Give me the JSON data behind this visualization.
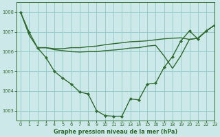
{
  "title": "Graphe pression niveau de la mer (hPa)",
  "background_color": "#cce8e8",
  "grid_color": "#99cccc",
  "line_color": "#2d6a2d",
  "xlim": [
    -0.5,
    23
  ],
  "ylim": [
    1002.5,
    1008.5
  ],
  "yticks": [
    1003,
    1004,
    1005,
    1006,
    1007,
    1008
  ],
  "xticks": [
    0,
    1,
    2,
    3,
    4,
    5,
    6,
    7,
    8,
    9,
    10,
    11,
    12,
    13,
    14,
    15,
    16,
    17,
    18,
    19,
    20,
    21,
    22,
    23
  ],
  "s1_x": [
    0,
    1,
    2,
    3,
    4,
    5,
    6,
    7,
    8,
    9,
    10,
    11,
    12,
    13,
    14,
    15,
    16,
    17,
    18,
    19,
    20,
    21,
    22,
    23
  ],
  "s1_y": [
    1008.0,
    1007.0,
    1006.2,
    1005.7,
    1005.0,
    1004.65,
    1004.35,
    1003.95,
    1003.85,
    1003.0,
    1002.75,
    1002.72,
    1002.72,
    1003.6,
    1003.55,
    1004.35,
    1004.4,
    1005.2,
    1005.75,
    1006.55,
    1007.05,
    1006.65,
    1007.05,
    1007.35
  ],
  "s2_x": [
    0,
    1,
    2,
    3,
    4,
    5,
    6,
    7,
    8,
    9,
    10,
    11,
    12,
    13,
    14,
    15,
    16,
    17,
    18,
    19,
    20,
    21,
    22,
    23
  ],
  "s2_y": [
    1008.0,
    1006.85,
    1006.2,
    1006.2,
    1006.15,
    1006.15,
    1006.2,
    1006.2,
    1006.25,
    1006.28,
    1006.35,
    1006.4,
    1006.45,
    1006.5,
    1006.52,
    1006.55,
    1006.6,
    1006.65,
    1006.68,
    1006.7,
    1006.62,
    1006.68,
    1007.05,
    1007.35
  ],
  "s3_x": [
    2,
    3,
    4,
    5,
    6,
    7,
    8,
    9,
    10,
    11,
    12,
    13,
    14,
    15,
    16,
    17,
    18,
    19,
    20,
    21,
    22,
    23
  ],
  "s3_y": [
    1006.2,
    1006.2,
    1006.1,
    1006.05,
    1006.0,
    1005.98,
    1006.0,
    1006.0,
    1006.05,
    1006.08,
    1006.12,
    1006.18,
    1006.2,
    1006.28,
    1006.32,
    1005.78,
    1005.15,
    1005.8,
    1006.62,
    1006.68,
    1007.05,
    1007.35
  ],
  "lw": 1.0,
  "ms": 2.2,
  "xlabel_fontsize": 5.8,
  "tick_fontsize": 4.8
}
